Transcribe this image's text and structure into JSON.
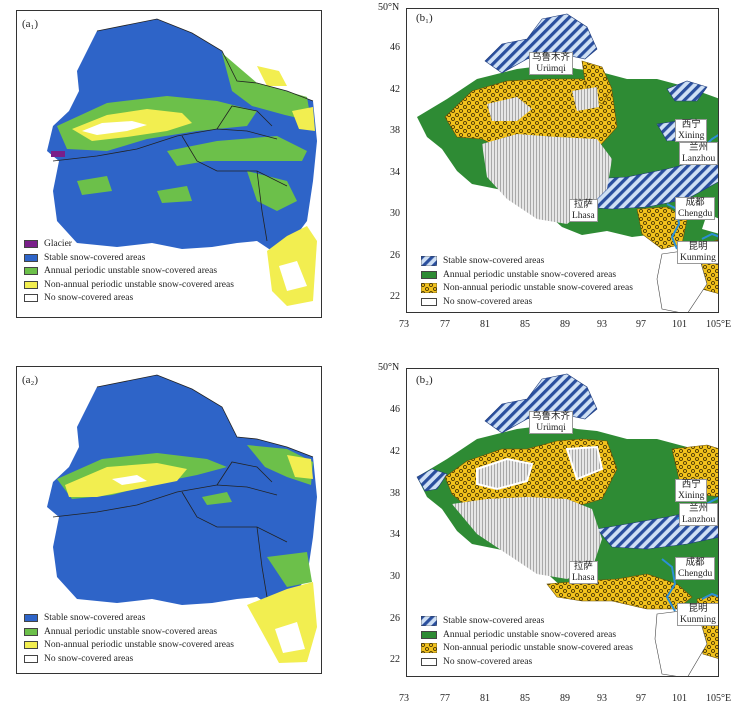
{
  "colors": {
    "glacier": "#7a1f8a",
    "stable": "#2e64c8",
    "annual": "#6cc04a",
    "non_annual": "#f2ee50",
    "none": "#ffffff",
    "green_b": "#2e8b34",
    "hatch_b": "#2a4f9e",
    "yellow_b": "#f2c21c",
    "river": "#2b8fd6"
  },
  "panels": {
    "a1": {
      "label": "(a₁)",
      "legend": [
        {
          "key": "glacier",
          "text": "Glacier"
        },
        {
          "key": "stable",
          "text": "Stable snow-covered areas"
        },
        {
          "key": "annual",
          "text": "Annual periodic unstable snow-covered areas"
        },
        {
          "key": "non_annual",
          "text": "Non-annual periodic unstable snow-covered areas"
        },
        {
          "key": "none",
          "text": "No snow-covered areas"
        }
      ]
    },
    "a2": {
      "label": "(a₂)",
      "legend": [
        {
          "key": "stable",
          "text": "Stable snow-covered areas"
        },
        {
          "key": "annual",
          "text": "Annual periodic unstable snow-covered areas"
        },
        {
          "key": "non_annual",
          "text": "Non-annual periodic unstable snow-covered areas"
        },
        {
          "key": "none",
          "text": "No snow-covered areas"
        }
      ]
    },
    "b1": {
      "label": "(b₁)",
      "legend": [
        {
          "key": "stable",
          "text": "Stable snow-covered areas"
        },
        {
          "key": "annual",
          "text": "Annual periodic unstable snow-covered areas"
        },
        {
          "key": "non_annual",
          "text": "Non-annual periodic unstable snow-covered areas"
        },
        {
          "key": "none",
          "text": "No snow-covered areas"
        }
      ]
    },
    "b2": {
      "label": "(b₂)",
      "legend": [
        {
          "key": "stable",
          "text": "Stable snow-covered areas"
        },
        {
          "key": "annual",
          "text": "Annual periodic unstable snow-covered areas"
        },
        {
          "key": "non_annual",
          "text": "Non-annual periodic unstable snow-covered areas"
        },
        {
          "key": "none",
          "text": "No snow-covered areas"
        }
      ]
    }
  },
  "axes": {
    "lat_ticks": [
      "50°N",
      "46",
      "42",
      "38",
      "34",
      "30",
      "26",
      "22"
    ],
    "lon_ticks": [
      "73",
      "77",
      "81",
      "85",
      "89",
      "93",
      "97",
      "101",
      "105°E"
    ]
  },
  "cities": [
    {
      "cn": "乌鲁木齐",
      "en": "Urümqi"
    },
    {
      "cn": "西宁",
      "en": "Xining"
    },
    {
      "cn": "兰州",
      "en": "Lanzhou"
    },
    {
      "cn": "拉萨",
      "en": "Lhasa"
    },
    {
      "cn": "成都",
      "en": "Chengdu"
    },
    {
      "cn": "昆明",
      "en": "Kunming"
    }
  ]
}
